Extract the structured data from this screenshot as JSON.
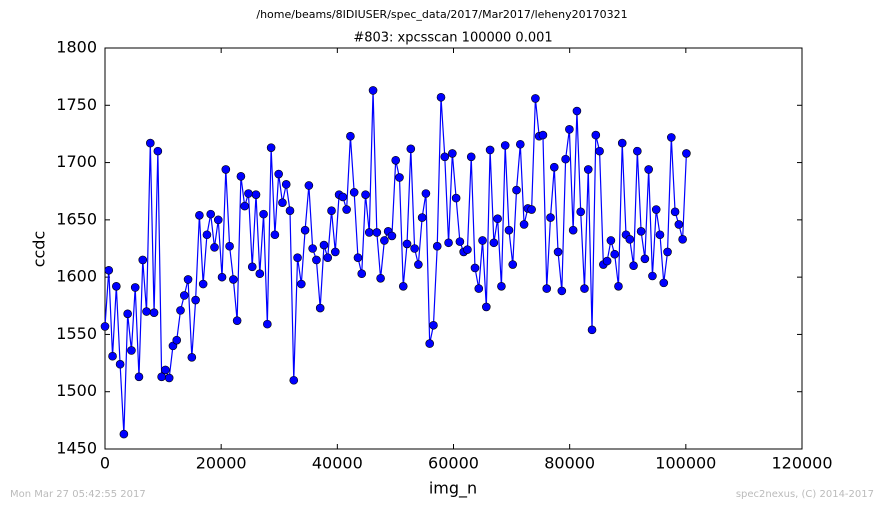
{
  "chart_data": {
    "type": "line",
    "suptitle": "/home/beams/8IDIUSER/spec_data/2017/Mar2017/leheny20170321",
    "title": "#803: xpcsscan 100000 0.001",
    "xlabel": "img_n",
    "ylabel": "ccdc",
    "xlim": [
      0,
      120000
    ],
    "xticks": [
      0,
      20000,
      40000,
      60000,
      80000,
      100000,
      120000
    ],
    "ylim": [
      1450,
      1800
    ],
    "yticks": [
      1450,
      1500,
      1550,
      1600,
      1650,
      1700,
      1750,
      1800
    ],
    "grid": false,
    "x": [
      0,
      650,
      1300,
      1950,
      2600,
      3250,
      3900,
      4550,
      5200,
      5850,
      6500,
      7150,
      7800,
      8450,
      9100,
      9750,
      10400,
      11050,
      11700,
      12350,
      13000,
      13650,
      14300,
      14950,
      15600,
      16250,
      16900,
      17550,
      18200,
      18850,
      19500,
      20150,
      20800,
      21450,
      22100,
      22750,
      23400,
      24050,
      24700,
      25350,
      26000,
      26650,
      27300,
      27950,
      28600,
      29250,
      29900,
      30550,
      31200,
      31850,
      32500,
      33150,
      33800,
      34450,
      35100,
      35750,
      36400,
      37050,
      37700,
      38350,
      39000,
      39650,
      40300,
      40950,
      41600,
      42250,
      42900,
      43550,
      44200,
      44850,
      45500,
      46150,
      46800,
      47450,
      48100,
      48750,
      49400,
      50050,
      50700,
      51350,
      52000,
      52650,
      53300,
      53950,
      54600,
      55250,
      55900,
      56550,
      57200,
      57850,
      58500,
      59150,
      59800,
      60450,
      61100,
      61750,
      62400,
      63050,
      63700,
      64350,
      65000,
      65650,
      66300,
      66950,
      67600,
      68250,
      68900,
      69550,
      70200,
      70850,
      71500,
      72150,
      72800,
      73450,
      74100,
      74750,
      75400,
      76050,
      76700,
      77350,
      78000,
      78650,
      79300,
      79950,
      80600,
      81250,
      81900,
      82550,
      83200,
      83850,
      84500,
      85150,
      85800,
      86450,
      87100,
      87750,
      88400,
      89050,
      89700,
      90350,
      91000,
      91650,
      92300,
      92950,
      93600,
      94250,
      94900,
      95550,
      96200,
      96850,
      97500,
      98150,
      98800,
      99450,
      100100
    ],
    "series": [
      {
        "color": "#0000ff",
        "values": [
          1557,
          1606,
          1531,
          1592,
          1524,
          1463,
          1568,
          1536,
          1591,
          1513,
          1615,
          1570,
          1717,
          1569,
          1710,
          1513,
          1519,
          1512,
          1540,
          1545,
          1571,
          1584,
          1598,
          1530,
          1580,
          1654,
          1594,
          1637,
          1655,
          1626,
          1650,
          1600,
          1694,
          1627,
          1598,
          1562,
          1688,
          1662,
          1673,
          1609,
          1672,
          1603,
          1655,
          1559,
          1713,
          1637,
          1690,
          1665,
          1681,
          1658,
          1510,
          1617,
          1594,
          1641,
          1680,
          1625,
          1615,
          1573,
          1628,
          1617,
          1658,
          1622,
          1672,
          1670,
          1659,
          1723,
          1674,
          1617,
          1603,
          1672,
          1639,
          1763,
          1639,
          1599,
          1632,
          1640,
          1636,
          1702,
          1687,
          1592,
          1629,
          1712,
          1625,
          1611,
          1652,
          1673,
          1542,
          1558,
          1627,
          1757,
          1705,
          1630,
          1708,
          1669,
          1631,
          1622,
          1624,
          1705,
          1608,
          1590,
          1632,
          1574,
          1711,
          1630,
          1651,
          1592,
          1715,
          1641,
          1611,
          1676,
          1716,
          1646,
          1660,
          1659,
          1756,
          1723,
          1724,
          1590,
          1652,
          1696,
          1622,
          1588,
          1703,
          1729,
          1641,
          1745,
          1657,
          1590,
          1694,
          1554,
          1724,
          1710,
          1611,
          1614,
          1632,
          1620,
          1592,
          1717,
          1637,
          1633,
          1610,
          1710,
          1640,
          1616,
          1694,
          1601,
          1659,
          1637,
          1595,
          1622,
          1722,
          1657,
          1646,
          1633,
          1708
        ]
      }
    ]
  },
  "footer": {
    "left": "Mon Mar 27 05:42:55 2017",
    "right": "spec2nexus, (C) 2014-2017"
  }
}
